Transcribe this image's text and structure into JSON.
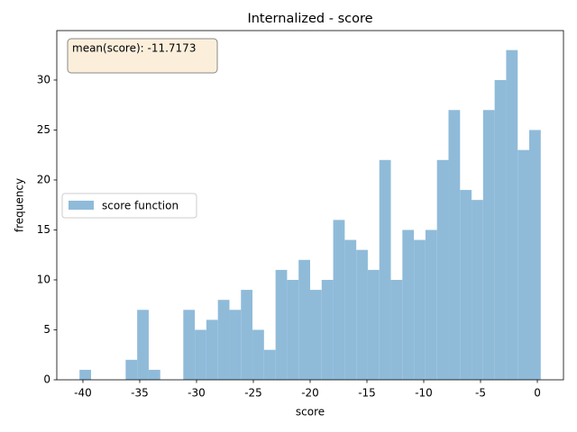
{
  "chart_data": {
    "type": "histogram",
    "title": "Internalized - score",
    "xlabel": "score",
    "ylabel": "frequency",
    "bins": [
      -40.3,
      -39.285,
      -38.27,
      -37.255,
      -36.24,
      -35.225,
      -34.21,
      -33.195,
      -32.18,
      -31.165,
      -30.15,
      -29.135,
      -28.12,
      -27.105,
      -26.09,
      -25.075,
      -24.06,
      -23.045,
      -22.03,
      -21.015,
      -20.0,
      -18.985,
      -17.97,
      -16.955,
      -15.94,
      -14.925,
      -13.91,
      -12.895,
      -11.88,
      -10.865,
      -9.85,
      -8.835,
      -7.82,
      -6.805,
      -5.79,
      -4.775,
      -3.76,
      -2.745,
      -1.73,
      -0.715,
      0.3
    ],
    "series": [
      {
        "name": "score function",
        "color": "#8fbbd9",
        "values": [
          1,
          0,
          0,
          0,
          2,
          7,
          1,
          0,
          0,
          7,
          5,
          6,
          8,
          7,
          9,
          5,
          3,
          11,
          10,
          12,
          9,
          10,
          16,
          14,
          13,
          11,
          22,
          10,
          15,
          14,
          15,
          22,
          27,
          19,
          18,
          27,
          30,
          33,
          23,
          25
        ]
      }
    ],
    "xlim": [
      -42.3,
      2.3
    ],
    "ylim": [
      0,
      34.95
    ],
    "xticks": [
      -40,
      -35,
      -30,
      -25,
      -20,
      -15,
      -10,
      -5,
      0
    ],
    "yticks": [
      0,
      5,
      10,
      15,
      20,
      25,
      30
    ],
    "annotation": "mean(score): -11.7173",
    "legend": "center left"
  }
}
